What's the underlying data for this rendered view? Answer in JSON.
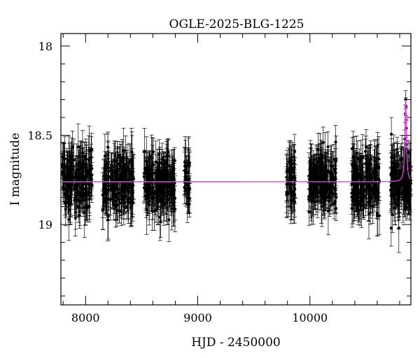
{
  "chart_data": {
    "type": "scatter",
    "title": "OGLE-2025-BLG-1225",
    "xlabel": "HJD - 2450000",
    "ylabel": "I magnitude",
    "xlim": [
      7780,
      10900
    ],
    "ylim": [
      19.45,
      17.93
    ],
    "y_inverted": true,
    "x_ticks": [
      8000,
      9000,
      10000
    ],
    "y_ticks": [
      18,
      18.5,
      19
    ],
    "x_minor_step": 200,
    "y_minor_step": 0.1,
    "grid": false,
    "error_bars": true,
    "series": [
      {
        "kind": "data",
        "seasons": [
          {
            "start": 7790,
            "end": 8060,
            "count": 190
          },
          {
            "start": 8150,
            "end": 8430,
            "count": 200
          },
          {
            "start": 8520,
            "end": 8800,
            "count": 200
          },
          {
            "start": 8880,
            "end": 8930,
            "count": 35
          },
          {
            "start": 9790,
            "end": 9870,
            "count": 55
          },
          {
            "start": 9990,
            "end": 10240,
            "count": 180
          },
          {
            "start": 10370,
            "end": 10620,
            "count": 180
          },
          {
            "start": 10720,
            "end": 10900,
            "count": 160
          }
        ],
        "baseline": 18.76,
        "scatter_sigma": 0.08,
        "error_range": [
          0.06,
          0.14
        ],
        "peak_points": [
          {
            "x": 10842,
            "y": 18.62
          },
          {
            "x": 10846,
            "y": 18.52
          },
          {
            "x": 10850,
            "y": 18.38
          },
          {
            "x": 10853,
            "y": 18.3
          },
          {
            "x": 10856,
            "y": 18.34
          },
          {
            "x": 10860,
            "y": 18.46
          },
          {
            "x": 10864,
            "y": 18.58
          },
          {
            "x": 10868,
            "y": 18.68
          }
        ]
      },
      {
        "kind": "model",
        "baseline": 18.76,
        "peak_x": 10853,
        "peak_y": 18.3,
        "tE": 8,
        "color": "#e040e8"
      }
    ]
  }
}
